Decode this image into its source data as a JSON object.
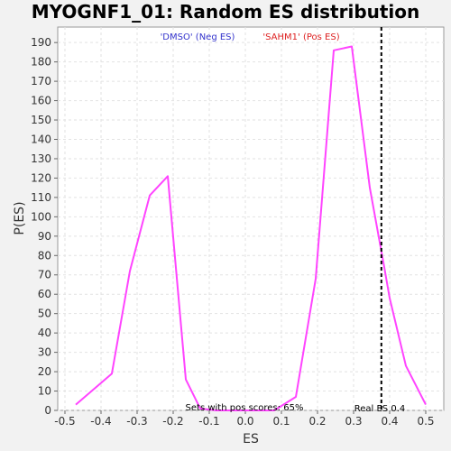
{
  "chart_data": {
    "type": "line",
    "title": "MYOGNF1_01: Random ES distribution",
    "xlabel": "ES",
    "ylabel": "P(ES)",
    "xlim": [
      -0.52,
      0.55
    ],
    "ylim": [
      0,
      198
    ],
    "x_ticks": [
      -0.5,
      -0.4,
      -0.3,
      -0.2,
      -0.1,
      0.0,
      0.1,
      0.2,
      0.3,
      0.4,
      0.5
    ],
    "x_tick_labels": [
      "-0.5",
      "-0.4",
      "-0.3",
      "-0.2",
      "-0.1",
      "0.0",
      "0.1",
      "0.2",
      "0.3",
      "0.4",
      "0.5"
    ],
    "y_ticks": [
      0,
      10,
      20,
      30,
      40,
      50,
      60,
      70,
      80,
      90,
      100,
      110,
      120,
      130,
      140,
      150,
      160,
      170,
      180,
      190
    ],
    "grid": true,
    "series": [
      {
        "color": "#ff44ff",
        "x": [
          -0.47,
          -0.37,
          -0.32,
          -0.265,
          -0.215,
          -0.165,
          -0.125,
          -0.08,
          0.0,
          0.08,
          0.14,
          0.195,
          0.245,
          0.295,
          0.345,
          0.385,
          0.4,
          0.445,
          0.5
        ],
        "y": [
          3,
          19,
          72,
          111,
          121,
          16,
          1,
          0,
          0,
          0,
          7,
          68,
          186,
          188,
          115,
          74,
          58,
          23,
          3
        ]
      }
    ],
    "real_es": 0.377,
    "legend": {
      "neg": "'DMSO' (Neg ES)",
      "pos": "'SAHM1' (Pos ES)",
      "neg_color": "#3333cc",
      "pos_color": "#dd2222"
    },
    "annotations": {
      "pos_scores": "Sets with pos scores: 65%",
      "real_es": "Real ES 0.4"
    }
  }
}
